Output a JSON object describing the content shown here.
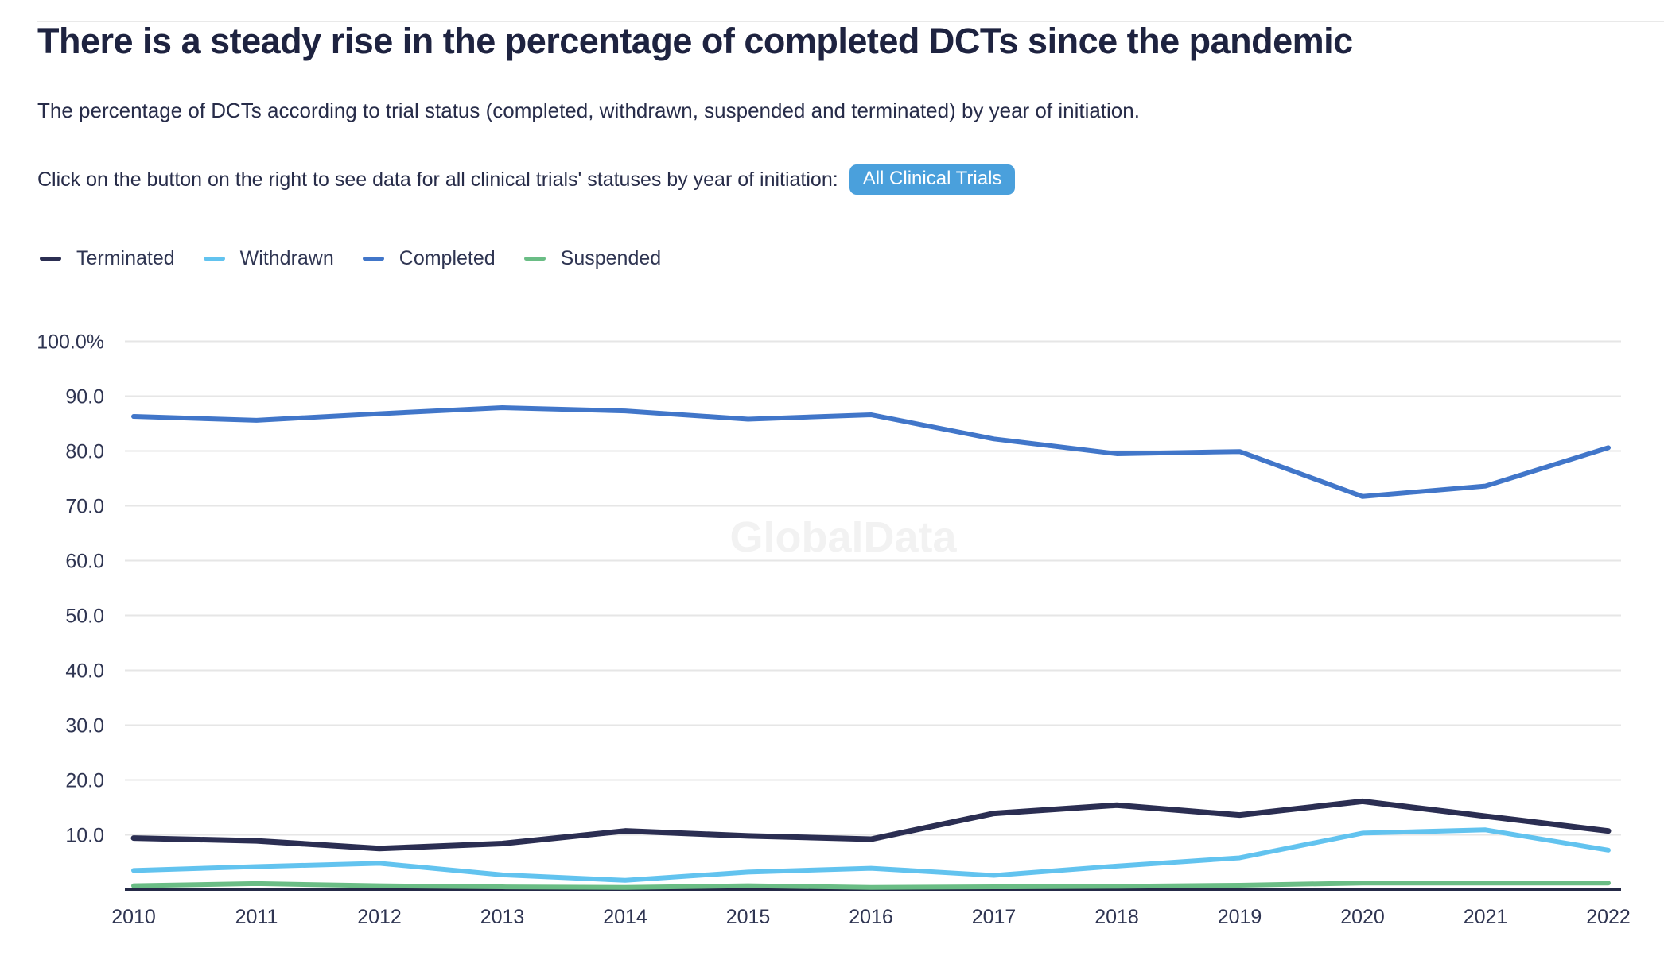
{
  "page": {
    "title": "There is a steady rise in the percentage of completed DCTs since the pandemic",
    "subtitle": "The percentage of DCTs according to trial status (completed, withdrawn, suspended and terminated) by year of initiation.",
    "cta_text": "Click on the button on the right to see data for all clinical trials' statuses by year of initiation:",
    "cta_button_label": "All Clinical Trials",
    "watermark": "GlobalData"
  },
  "colors": {
    "button_background": "#4aa0dc",
    "button_text": "#ffffff",
    "title_text": "#1e2340",
    "body_text": "#272c49",
    "axis_label_text": "#2f3552",
    "gridline": "#e6e6e6",
    "axis_line": "#252a47",
    "watermark_text": "#f2f2f2"
  },
  "chart_data": {
    "type": "line",
    "x": [
      "2010",
      "2011",
      "2012",
      "2013",
      "2014",
      "2015",
      "2016",
      "2017",
      "2018",
      "2019",
      "2020",
      "2021",
      "2022"
    ],
    "series": [
      {
        "name": "Terminated",
        "color": "#2b2e52",
        "values": [
          9.4,
          8.9,
          7.5,
          8.4,
          10.7,
          9.8,
          9.2,
          13.9,
          15.4,
          13.6,
          16.1,
          13.4,
          10.7
        ]
      },
      {
        "name": "Withdrawn",
        "color": "#62c3ef",
        "values": [
          3.5,
          4.2,
          4.8,
          2.7,
          1.7,
          3.2,
          3.9,
          2.6,
          4.3,
          5.8,
          10.3,
          10.9,
          7.2
        ]
      },
      {
        "name": "Completed",
        "color": "#4176c9",
        "values": [
          86.3,
          85.6,
          86.8,
          87.9,
          87.3,
          85.8,
          86.6,
          82.2,
          79.5,
          79.9,
          71.7,
          73.6,
          80.6
        ]
      },
      {
        "name": "Suspended",
        "color": "#6abd85",
        "values": [
          0.7,
          1.1,
          0.7,
          0.5,
          0.4,
          0.7,
          0.4,
          0.5,
          0.6,
          0.8,
          1.2,
          1.2,
          1.2
        ]
      }
    ],
    "y_ticks": [
      {
        "label": "100.0%",
        "value": 100
      },
      {
        "label": "90.0",
        "value": 90
      },
      {
        "label": "80.0",
        "value": 80
      },
      {
        "label": "70.0",
        "value": 70
      },
      {
        "label": "60.0",
        "value": 60
      },
      {
        "label": "50.0",
        "value": 50
      },
      {
        "label": "40.0",
        "value": 40
      },
      {
        "label": "30.0",
        "value": 30
      },
      {
        "label": "20.0",
        "value": 20
      },
      {
        "label": "10.0",
        "value": 10
      }
    ],
    "ylim": [
      0,
      100
    ],
    "xlabel": "",
    "ylabel": "",
    "grid": true,
    "legend_position": "top-left",
    "legend_order": [
      "Terminated",
      "Withdrawn",
      "Completed",
      "Suspended"
    ]
  }
}
